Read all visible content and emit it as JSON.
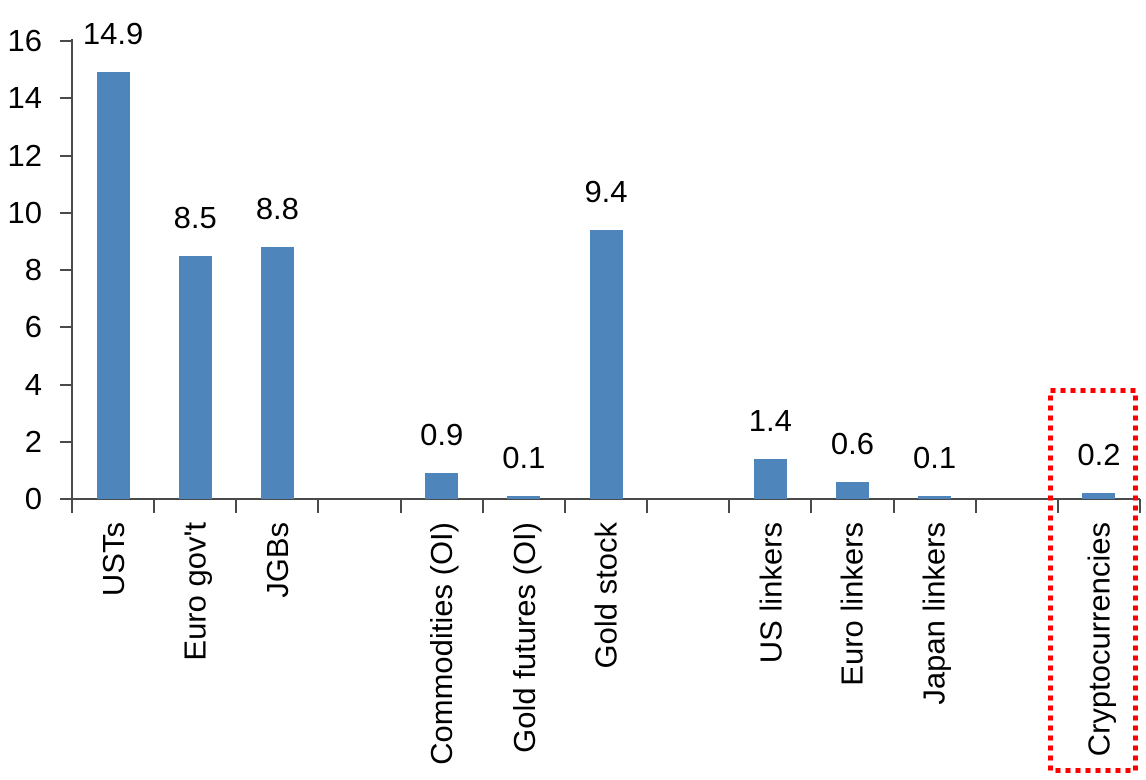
{
  "chart_data": {
    "type": "bar",
    "title": "",
    "categories": [
      "USTs",
      "Euro gov't",
      "JGBs",
      "",
      "Commodities (OI)",
      "Gold futures (OI)",
      "Gold stock",
      "",
      "US linkers",
      "Euro linkers",
      "Japan linkers",
      "",
      "Cryptocurrencies"
    ],
    "values": [
      14.9,
      8.5,
      8.8,
      null,
      0.9,
      0.1,
      9.4,
      null,
      1.4,
      0.6,
      0.1,
      null,
      0.2
    ],
    "data_labels": [
      "14.9",
      "8.5",
      "8.8",
      "",
      "0.9",
      "0.1",
      "9.4",
      "",
      "1.4",
      "0.6",
      "0.1",
      "",
      "0.2"
    ],
    "xlabel": "",
    "ylabel": "",
    "ylim": [
      0,
      16
    ],
    "yticks": [
      0,
      2,
      4,
      6,
      8,
      10,
      12,
      14,
      16
    ],
    "grid": "off",
    "legend": "none",
    "bar_color": "#4E86BC",
    "axis_color": "#4A4A4A",
    "text_color": "#000000",
    "highlight": {
      "category": "Cryptocurrencies",
      "color": "#FF0000",
      "style": "dotted-box"
    }
  }
}
